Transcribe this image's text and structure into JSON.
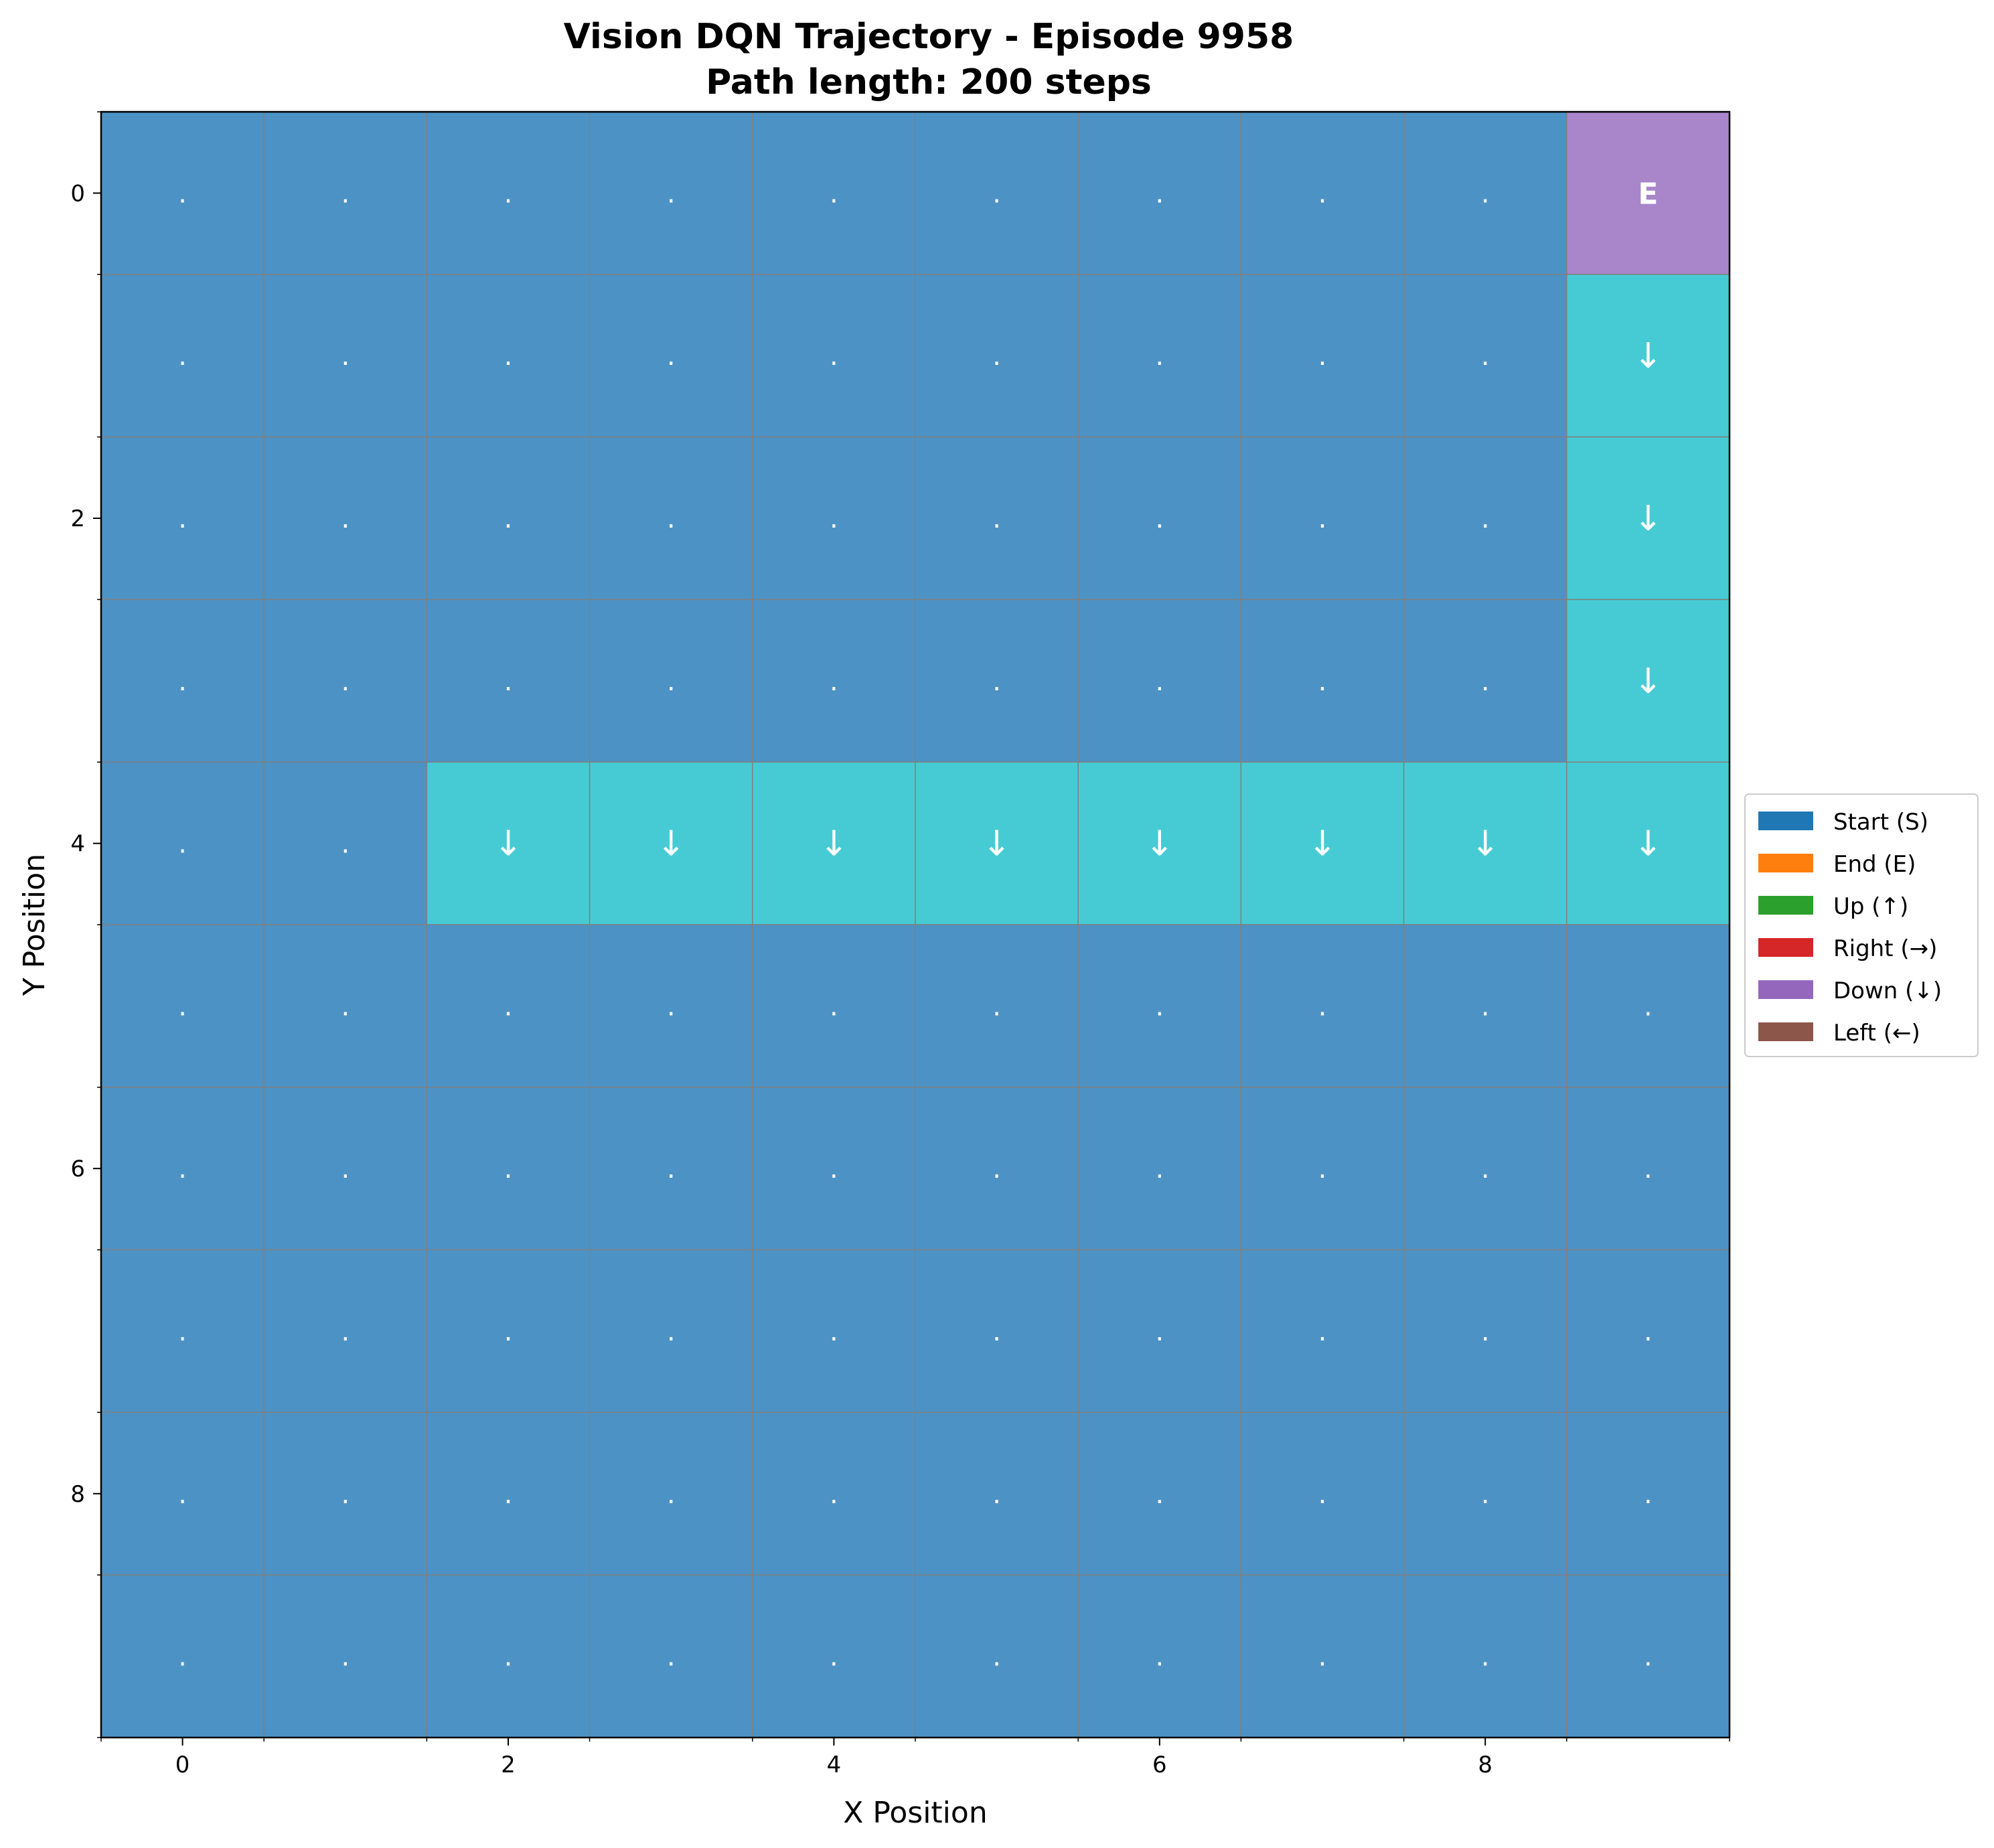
{
  "chart_data": {
    "type": "heatmap",
    "title_line1": "Vision DQN Trajectory - Episode 9958",
    "title_line2": "Path length: 200 steps",
    "xlabel": "X Position",
    "ylabel": "Y Position",
    "xlim": [
      -0.5,
      9.5
    ],
    "ylim": [
      9.5,
      -0.5
    ],
    "xticks": [
      0,
      2,
      4,
      6,
      8
    ],
    "yticks": [
      0,
      2,
      4,
      6,
      8
    ],
    "grid_size": 10,
    "colors": {
      "empty": "#4d92c4",
      "path": "#46cbd5",
      "end": "#a886c9",
      "grid_line": "#808080",
      "cell_text": "#ffffff"
    },
    "grid": [
      [
        ".",
        ".",
        ".",
        ".",
        ".",
        ".",
        ".",
        ".",
        ".",
        "E"
      ],
      [
        ".",
        ".",
        ".",
        ".",
        ".",
        ".",
        ".",
        ".",
        ".",
        "↓"
      ],
      [
        ".",
        ".",
        ".",
        ".",
        ".",
        ".",
        ".",
        ".",
        ".",
        "↓"
      ],
      [
        ".",
        ".",
        ".",
        ".",
        ".",
        ".",
        ".",
        ".",
        ".",
        "↓"
      ],
      [
        ".",
        ".",
        "↓",
        "↓",
        "↓",
        "↓",
        "↓",
        "↓",
        "↓",
        "↓"
      ],
      [
        ".",
        ".",
        ".",
        ".",
        ".",
        ".",
        ".",
        ".",
        ".",
        "."
      ],
      [
        ".",
        ".",
        ".",
        ".",
        ".",
        ".",
        ".",
        ".",
        ".",
        "."
      ],
      [
        ".",
        ".",
        ".",
        ".",
        ".",
        ".",
        ".",
        ".",
        ".",
        "."
      ],
      [
        ".",
        ".",
        ".",
        ".",
        ".",
        ".",
        ".",
        ".",
        ".",
        "."
      ],
      [
        ".",
        ".",
        ".",
        ".",
        ".",
        ".",
        ".",
        ".",
        ".",
        "."
      ]
    ],
    "legend": {
      "placement": "center-right",
      "entries": [
        {
          "label": "Start (S)",
          "color": "#1f77b4"
        },
        {
          "label": "End (E)",
          "color": "#ff7f0e"
        },
        {
          "label": "Up (↑)",
          "color": "#2ca02c"
        },
        {
          "label": "Right (→)",
          "color": "#d62728"
        },
        {
          "label": "Down (↓)",
          "color": "#9467bd"
        },
        {
          "label": "Left (←)",
          "color": "#8c564b"
        }
      ]
    }
  }
}
